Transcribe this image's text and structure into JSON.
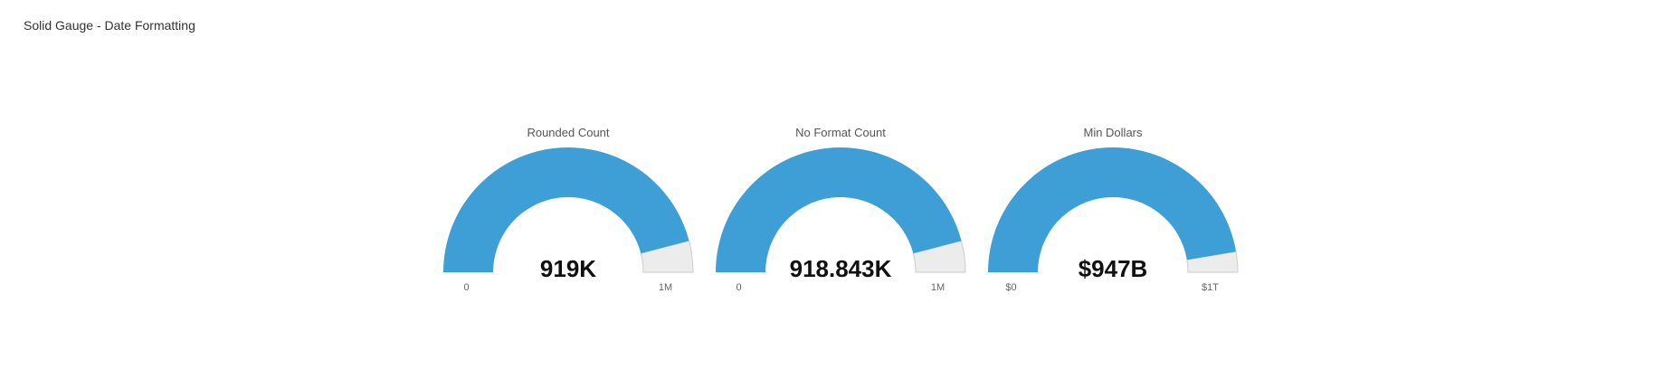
{
  "panel": {
    "title": "Solid Gauge - Date Formatting"
  },
  "colors": {
    "fill": "#3d9fd6",
    "track": "#ececec",
    "track_stroke": "#cccccc"
  },
  "chart_data": [
    {
      "type": "solid-gauge",
      "title": "Rounded Count",
      "value": 918843,
      "display_value": "919K",
      "min": 0,
      "max": 1000000,
      "min_label": "0",
      "max_label": "1M"
    },
    {
      "type": "solid-gauge",
      "title": "No Format Count",
      "value": 918843,
      "display_value": "918.843K",
      "min": 0,
      "max": 1000000,
      "min_label": "0",
      "max_label": "1M"
    },
    {
      "type": "solid-gauge",
      "title": "Min Dollars",
      "value": 947000000000,
      "display_value": "$947B",
      "min": 0,
      "max": 1000000000000,
      "min_label": "$0",
      "max_label": "$1T"
    }
  ]
}
